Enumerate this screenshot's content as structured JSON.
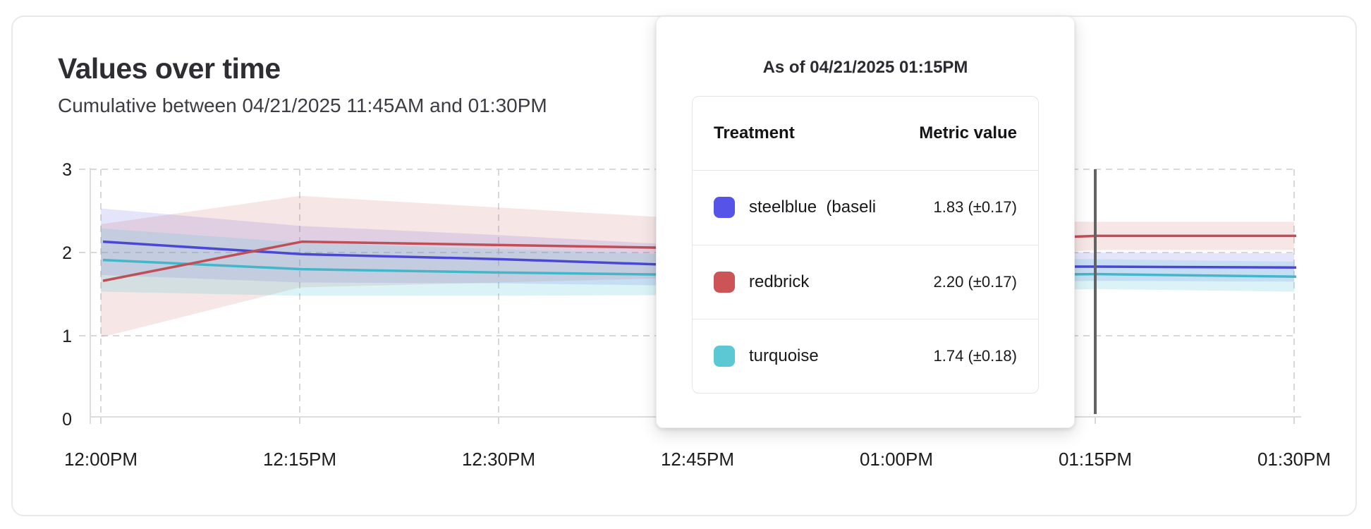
{
  "card": {
    "title": "Values over time",
    "subtitle": "Cumulative between 04/21/2025 11:45AM and 01:30PM"
  },
  "tooltip": {
    "title": "As of 04/21/2025 01:15PM",
    "columns": [
      "Treatment",
      "Metric value"
    ],
    "rows": [
      {
        "swatch_color": "#5654e8",
        "label": "steelblue  (baseli",
        "value": "1.83 (±0.17)"
      },
      {
        "swatch_color": "#cc5456",
        "label": "redbrick",
        "value": "2.20 (±0.17)"
      },
      {
        "swatch_color": "#5cc8d4",
        "label": "turquoise",
        "value": "1.74 (±0.18)"
      }
    ]
  },
  "chart_data": {
    "type": "line",
    "title": "Values over time",
    "subtitle": "Cumulative between 04/21/2025 11:45AM and 01:30PM",
    "xlabel": "",
    "ylabel": "",
    "x_tick_labels": [
      "12:00PM",
      "12:15PM",
      "12:30PM",
      "12:45PM",
      "01:00PM",
      "01:15PM",
      "01:30PM"
    ],
    "x_minutes": [
      0,
      15,
      30,
      45,
      60,
      75,
      90
    ],
    "y_ticks": [
      0,
      1,
      2,
      3
    ],
    "ylim": [
      0,
      3
    ],
    "grid": "dashed",
    "grid_color": "#d8d8d8",
    "axis_color": "#dcdcdc",
    "tick_label_color": "#1c1c1e",
    "hover_marker": {
      "x_label": "01:15PM",
      "x_minutes": 75,
      "color": "#636363"
    },
    "series": [
      {
        "name": "steelblue (baseline)",
        "line_color": "#4a47d4",
        "fill_color": "#5654e8",
        "fill_opacity": 0.16,
        "values": [
          2.13,
          1.98,
          1.92,
          1.84,
          1.83,
          1.83,
          1.82
        ],
        "band_half_width": [
          0.4,
          0.34,
          0.29,
          0.24,
          0.2,
          0.17,
          0.17
        ]
      },
      {
        "name": "redbrick",
        "line_color": "#bf4f56",
        "fill_color": "#cc5456",
        "fill_opacity": 0.15,
        "values": [
          1.66,
          2.13,
          2.09,
          2.05,
          2.12,
          2.2,
          2.2
        ],
        "band_half_width": [
          0.68,
          0.55,
          0.45,
          0.35,
          0.25,
          0.17,
          0.17
        ]
      },
      {
        "name": "turquoise",
        "line_color": "#43b7c9",
        "fill_color": "#5cc8d4",
        "fill_opacity": 0.22,
        "values": [
          1.91,
          1.8,
          1.76,
          1.73,
          1.73,
          1.74,
          1.71
        ],
        "band_half_width": [
          0.38,
          0.32,
          0.28,
          0.24,
          0.21,
          0.18,
          0.18
        ]
      }
    ]
  }
}
